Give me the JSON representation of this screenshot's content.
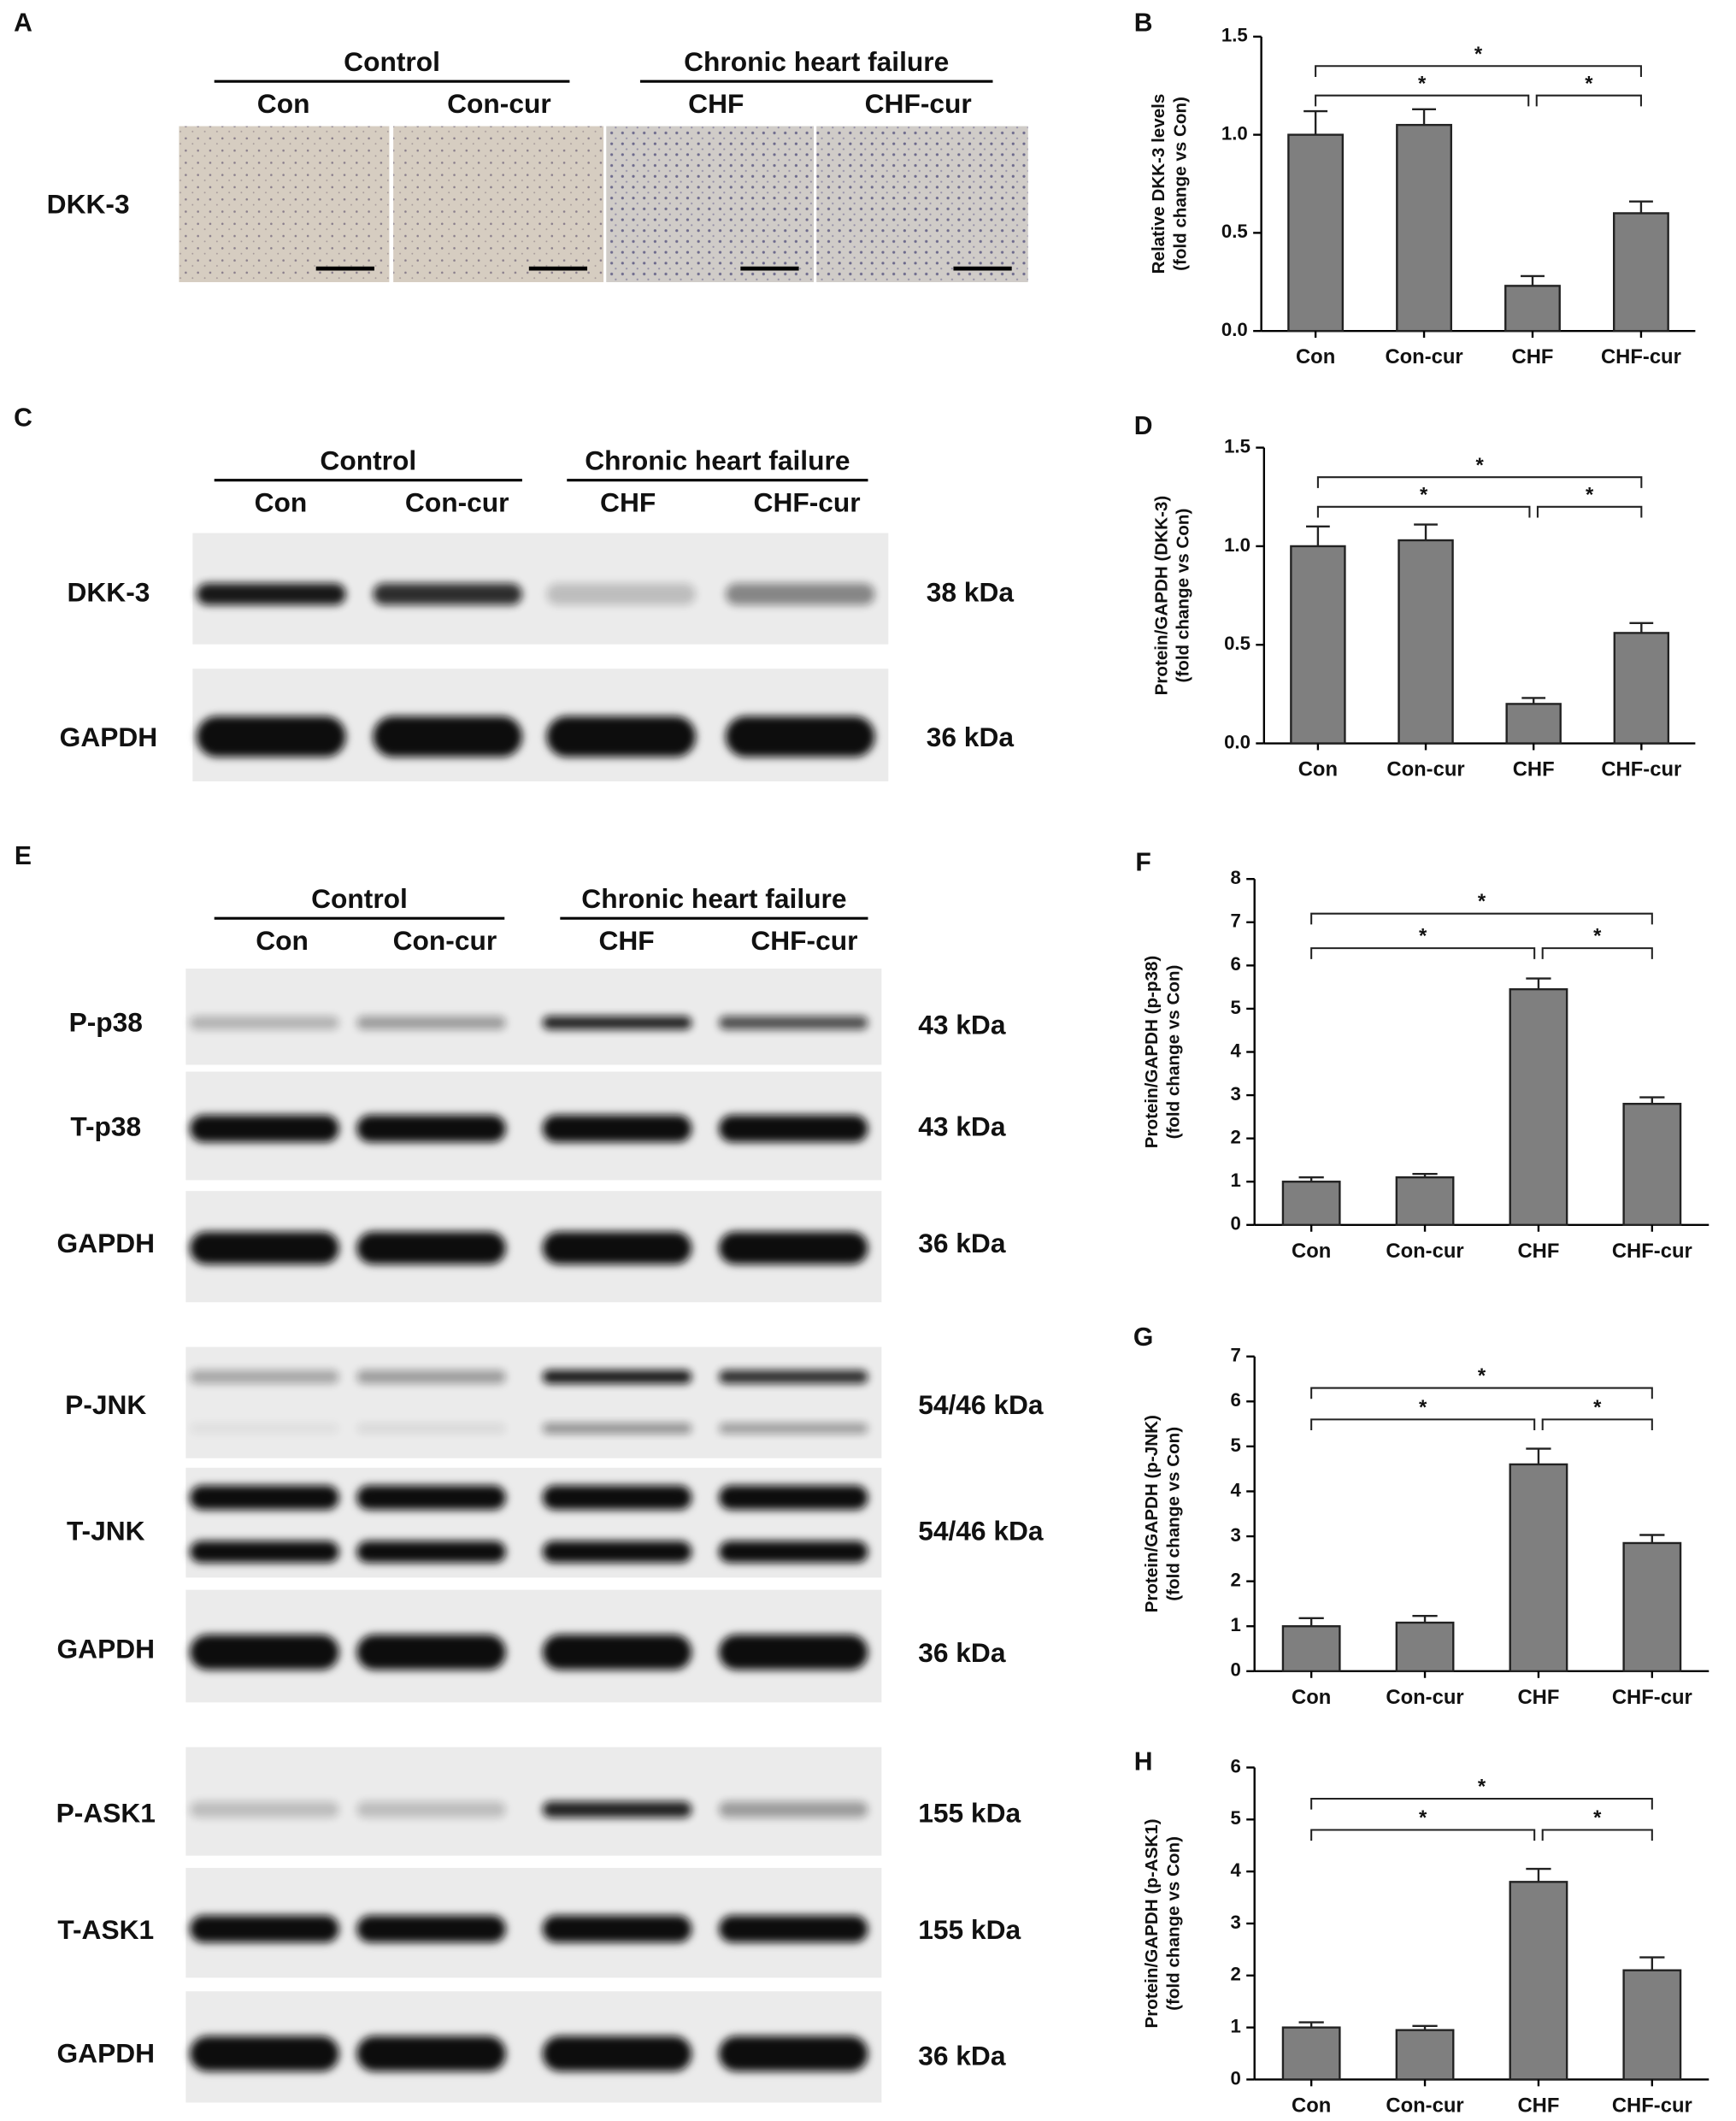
{
  "figure": {
    "group_headers": [
      "Control",
      "Chronic heart failure"
    ],
    "lanes": [
      "Con",
      "Con-cur",
      "CHF",
      "CHF-cur"
    ],
    "panel_a": {
      "label": "A",
      "row": "DKK-3"
    },
    "panel_c": {
      "label": "C",
      "blots": [
        {
          "name": "DKK-3",
          "size": "38 kDa"
        },
        {
          "name": "GAPDH",
          "size": "36 kDa"
        }
      ]
    },
    "panel_e": {
      "label": "E",
      "blots": [
        {
          "name": "P-p38",
          "size": "43 kDa"
        },
        {
          "name": "T-p38",
          "size": "43 kDa"
        },
        {
          "name": "GAPDH",
          "size": "36 kDa"
        },
        {
          "name": "P-JNK",
          "size": "54/46 kDa"
        },
        {
          "name": "T-JNK",
          "size": "54/46 kDa"
        },
        {
          "name": "GAPDH",
          "size": "36 kDa"
        },
        {
          "name": "P-ASK1",
          "size": "155 kDa"
        },
        {
          "name": "T-ASK1",
          "size": "155 kDa"
        },
        {
          "name": "GAPDH",
          "size": "36 kDa"
        }
      ]
    }
  },
  "chart_data": [
    {
      "type": "bar",
      "panel": "B",
      "ylabel": [
        "Relative DKK-3 levels",
        "(fold change vs Con)"
      ],
      "categories": [
        "Con",
        "Con-cur",
        "CHF",
        "CHF-cur"
      ],
      "values": [
        1.0,
        1.05,
        0.23,
        0.6
      ],
      "errors": [
        0.12,
        0.08,
        0.05,
        0.06
      ],
      "color": "#7f7f7f",
      "ylim": [
        0,
        1.5
      ],
      "yticks": [
        {
          "value": 0,
          "label": "0.0"
        },
        0.5,
        {
          "value": 1,
          "label": "1.0"
        },
        1.5
      ],
      "brackets": [
        {
          "between": [
            "Con",
            "CHF-cur"
          ],
          "label": "*"
        },
        {
          "between": [
            "Con",
            "CHF"
          ],
          "label": "*"
        },
        {
          "between": [
            "CHF",
            "CHF-cur"
          ],
          "label": "*"
        }
      ]
    },
    {
      "type": "bar",
      "panel": "D",
      "ylabel": [
        "Protein/GAPDH (DKK-3)",
        "(fold change vs Con)"
      ],
      "categories": [
        "Con",
        "Con-cur",
        "CHF",
        "CHF-cur"
      ],
      "values": [
        1.0,
        1.03,
        0.2,
        0.56
      ],
      "errors": [
        0.1,
        0.08,
        0.03,
        0.05
      ],
      "color": "#7f7f7f",
      "ylim": [
        0,
        1.5
      ],
      "yticks": [
        {
          "value": 0,
          "label": "0.0"
        },
        0.5,
        {
          "value": 1,
          "label": "1.0"
        },
        1.5
      ],
      "brackets": [
        {
          "between": [
            "Con",
            "CHF-cur"
          ],
          "label": "*"
        },
        {
          "between": [
            "Con",
            "CHF"
          ],
          "label": "*"
        },
        {
          "between": [
            "CHF",
            "CHF-cur"
          ],
          "label": "*"
        }
      ]
    },
    {
      "type": "bar",
      "panel": "F",
      "ylabel": [
        "Protein/GAPDH (p-p38)",
        "(fold change vs Con)"
      ],
      "categories": [
        "Con",
        "Con-cur",
        "CHF",
        "CHF-cur"
      ],
      "values": [
        1.0,
        1.1,
        5.45,
        2.8
      ],
      "errors": [
        0.1,
        0.08,
        0.25,
        0.15
      ],
      "color": "#7f7f7f",
      "ylim": [
        0,
        8
      ],
      "yticks": [
        0,
        1,
        2,
        3,
        4,
        5,
        6,
        7,
        8
      ],
      "brackets": [
        {
          "between": [
            "Con",
            "CHF-cur"
          ],
          "label": "*"
        },
        {
          "between": [
            "Con",
            "CHF"
          ],
          "label": "*"
        },
        {
          "between": [
            "CHF",
            "CHF-cur"
          ],
          "label": "*"
        }
      ]
    },
    {
      "type": "bar",
      "panel": "G",
      "ylabel": [
        "Protein/GAPDH (p-JNK)",
        "(fold change vs Con)"
      ],
      "categories": [
        "Con",
        "Con-cur",
        "CHF",
        "CHF-cur"
      ],
      "values": [
        1.0,
        1.08,
        4.6,
        2.85
      ],
      "errors": [
        0.18,
        0.15,
        0.35,
        0.18
      ],
      "color": "#7f7f7f",
      "ylim": [
        0,
        7
      ],
      "yticks": [
        0,
        1,
        2,
        3,
        4,
        5,
        6,
        7
      ],
      "brackets": [
        {
          "between": [
            "Con",
            "CHF-cur"
          ],
          "label": "*"
        },
        {
          "between": [
            "Con",
            "CHF"
          ],
          "label": "*"
        },
        {
          "between": [
            "CHF",
            "CHF-cur"
          ],
          "label": "*"
        }
      ]
    },
    {
      "type": "bar",
      "panel": "H",
      "ylabel": [
        "Protein/GAPDH (p-ASK1)",
        "(fold change vs Con)"
      ],
      "categories": [
        "Con",
        "Con-cur",
        "CHF",
        "CHF-cur"
      ],
      "values": [
        1.0,
        0.95,
        3.8,
        2.1
      ],
      "errors": [
        0.1,
        0.08,
        0.25,
        0.25
      ],
      "color": "#7f7f7f",
      "ylim": [
        0,
        6
      ],
      "yticks": [
        0,
        1,
        2,
        3,
        4,
        5,
        6
      ],
      "brackets": [
        {
          "between": [
            "Con",
            "CHF-cur"
          ],
          "label": "*"
        },
        {
          "between": [
            "Con",
            "CHF"
          ],
          "label": "*"
        },
        {
          "between": [
            "CHF",
            "CHF-cur"
          ],
          "label": "*"
        }
      ]
    }
  ]
}
